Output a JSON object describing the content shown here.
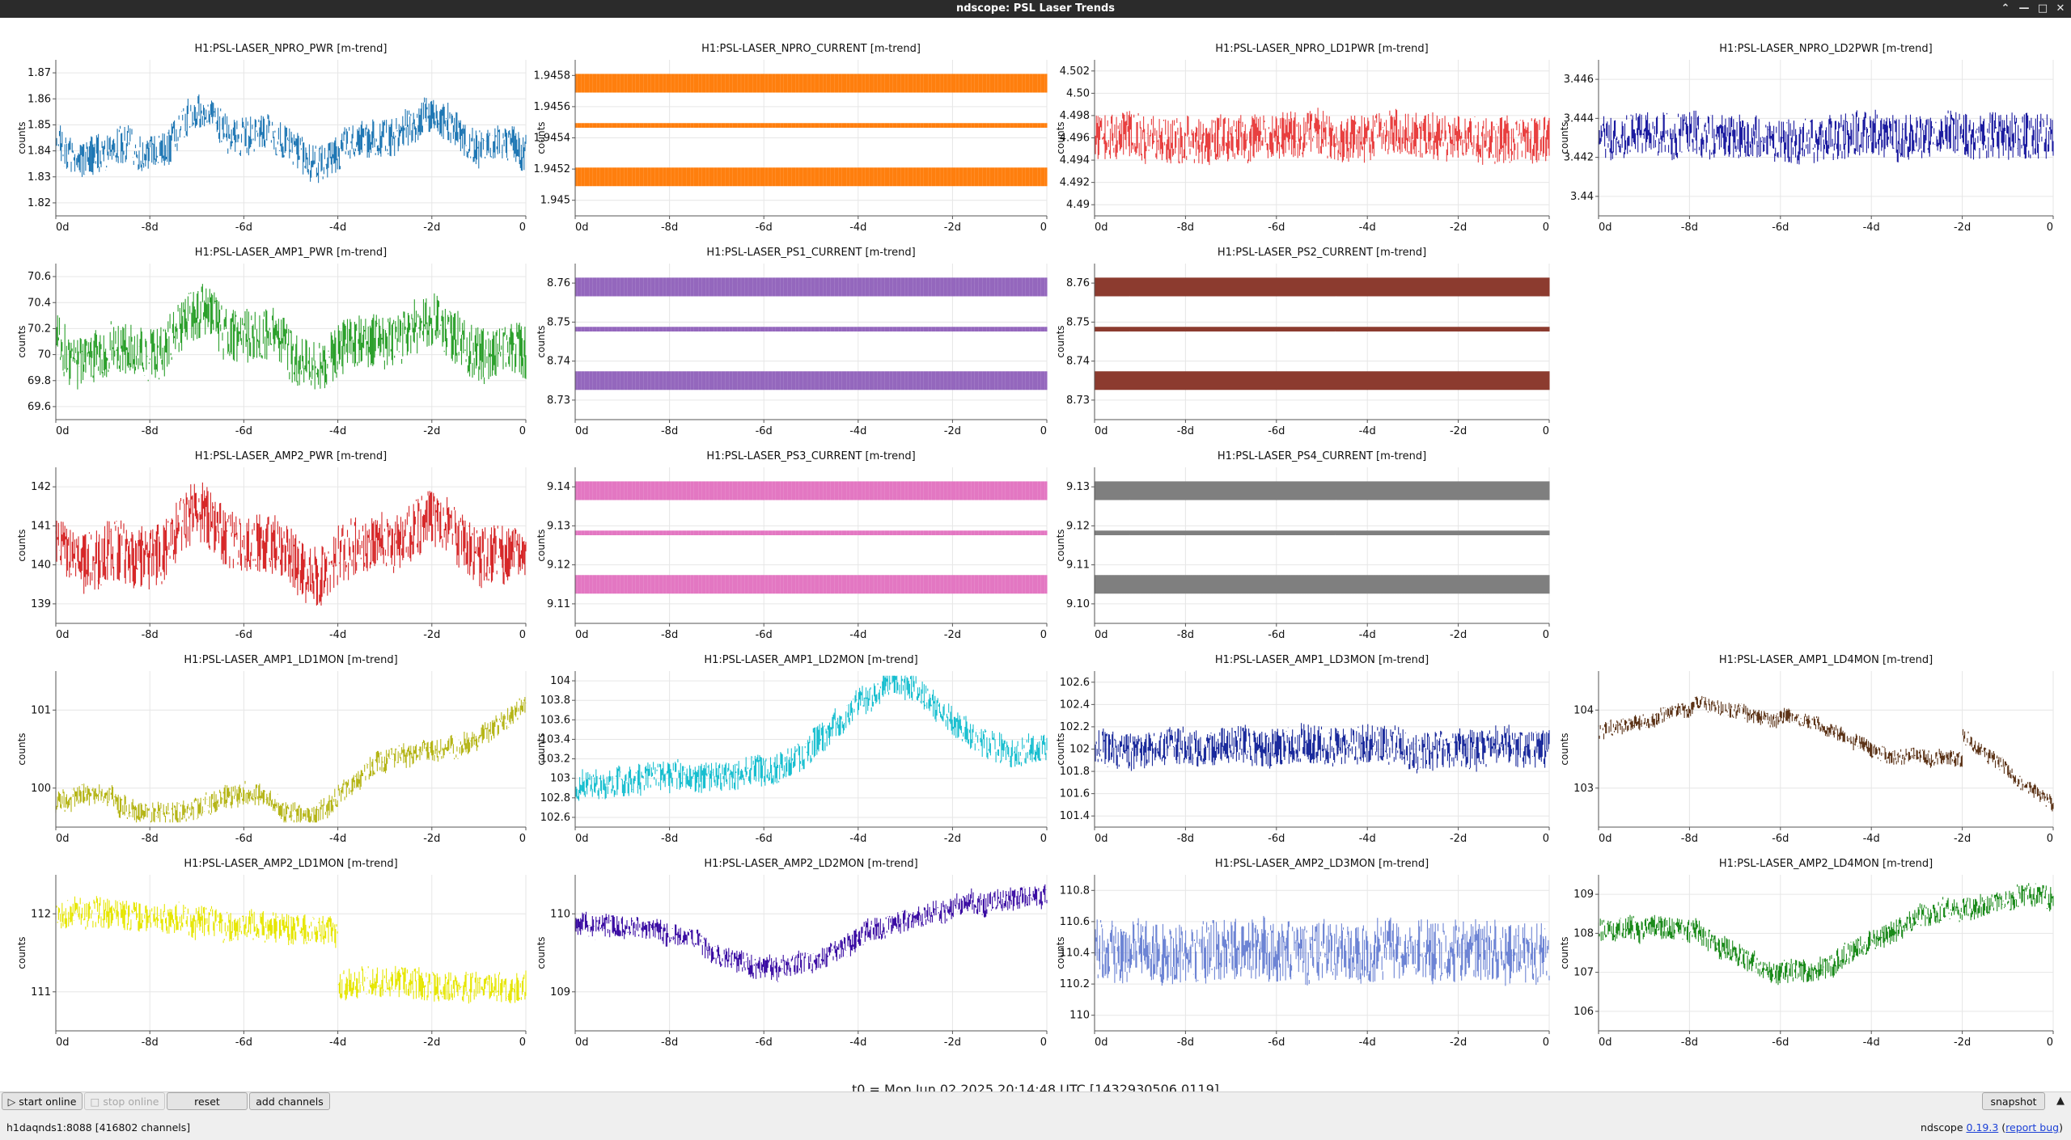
{
  "window": {
    "title": "ndscope: PSL Laser Trends"
  },
  "colors": {
    "titlebar_bg": "#2b2b2b",
    "grid": "#e6e6e6",
    "axis": "#555555"
  },
  "plots": [
    {
      "title": "H1:PSL-LASER_NPRO_PWR [m-trend]",
      "color": "#1f77b4",
      "yticks": [
        "1.87",
        "1.86",
        "1.85",
        "1.84",
        "1.83",
        "1.82"
      ],
      "pattern": "wave",
      "level": 0.45,
      "noise": 0.25
    },
    {
      "title": "H1:PSL-LASER_NPRO_CURRENT [m-trend]",
      "color": "#ff7f0e",
      "yticks": [
        "1.9458",
        "1.9456",
        "1.9454",
        "1.9452",
        "1.945"
      ],
      "pattern": "bands",
      "level": 0.5,
      "noise": 0.1
    },
    {
      "title": "H1:PSL-LASER_NPRO_LD1PWR [m-trend]",
      "color": "#e84040",
      "yticks": [
        "4.502",
        "4.50",
        "4.498",
        "4.496",
        "4.494",
        "4.492",
        "4.49"
      ],
      "pattern": "spiky",
      "level": 0.5,
      "noise": 0.3
    },
    {
      "title": "H1:PSL-LASER_NPRO_LD2PWR [m-trend]",
      "color": "#1c1ca0",
      "yticks": [
        "3.446",
        "3.444",
        "3.442",
        "3.44"
      ],
      "pattern": "spiky",
      "level": 0.5,
      "noise": 0.3
    },
    {
      "title": "H1:PSL-LASER_AMP1_PWR [m-trend]",
      "color": "#2ca02c",
      "yticks": [
        "70.6",
        "70.4",
        "70.2",
        "70",
        "69.8",
        "69.6"
      ],
      "pattern": "wave",
      "level": 0.5,
      "noise": 0.35
    },
    {
      "title": "H1:PSL-LASER_PS1_CURRENT [m-trend]",
      "color": "#9467bd",
      "yticks": [
        "8.76",
        "8.75",
        "8.74",
        "8.73"
      ],
      "pattern": "bands",
      "level": 0.5,
      "noise": 0.1
    },
    {
      "title": "H1:PSL-LASER_PS2_CURRENT [m-trend]",
      "color": "#8c3b2f",
      "yticks": [
        "8.76",
        "8.75",
        "8.74",
        "8.73"
      ],
      "pattern": "bands",
      "level": 0.5,
      "noise": 0.1
    },
    null,
    {
      "title": "H1:PSL-LASER_AMP2_PWR [m-trend]",
      "color": "#d62728",
      "yticks": [
        "142",
        "141",
        "140",
        "139"
      ],
      "pattern": "wave",
      "level": 0.5,
      "noise": 0.4
    },
    {
      "title": "H1:PSL-LASER_PS3_CURRENT [m-trend]",
      "color": "#e377c2",
      "yticks": [
        "9.14",
        "9.13",
        "9.12",
        "9.11"
      ],
      "pattern": "bands",
      "level": 0.5,
      "noise": 0.1
    },
    {
      "title": "H1:PSL-LASER_PS4_CURRENT [m-trend]",
      "color": "#7f7f7f",
      "yticks": [
        "9.13",
        "9.12",
        "9.11",
        "9.10"
      ],
      "pattern": "bands",
      "level": 0.5,
      "noise": 0.1
    },
    null,
    {
      "title": "H1:PSL-LASER_AMP1_LD1MON [m-trend]",
      "color": "#b5b517",
      "yticks": [
        "101",
        "100"
      ],
      "pattern": "rise",
      "level": 0.5,
      "noise": 0.15
    },
    {
      "title": "H1:PSL-LASER_AMP1_LD2MON [m-trend]",
      "color": "#17becf",
      "yticks": [
        "104",
        "103.8",
        "103.6",
        "103.4",
        "103.2",
        "103",
        "102.8",
        "102.6"
      ],
      "pattern": "hump",
      "level": 0.5,
      "noise": 0.2
    },
    {
      "title": "H1:PSL-LASER_AMP1_LD3MON [m-trend]",
      "color": "#1a2a9c",
      "yticks": [
        "102.6",
        "102.4",
        "102.2",
        "102",
        "101.8",
        "101.6",
        "101.4"
      ],
      "pattern": "spiky",
      "level": 0.45,
      "noise": 0.25
    },
    {
      "title": "H1:PSL-LASER_AMP1_LD4MON [m-trend]",
      "color": "#5c3317",
      "yticks": [
        "104",
        "103"
      ],
      "pattern": "humpfall",
      "level": 0.5,
      "noise": 0.1
    },
    {
      "title": "H1:PSL-LASER_AMP2_LD1MON [m-trend]",
      "color": "#e6e600",
      "yticks": [
        "112",
        "111"
      ],
      "pattern": "fall",
      "level": 0.5,
      "noise": 0.2
    },
    {
      "title": "H1:PSL-LASER_AMP2_LD2MON [m-trend]",
      "color": "#3a0ca3",
      "yticks": [
        "110",
        "109"
      ],
      "pattern": "dip",
      "level": 0.5,
      "noise": 0.15
    },
    {
      "title": "H1:PSL-LASER_AMP2_LD3MON [m-trend]",
      "color": "#6d84d4",
      "yticks": [
        "110.8",
        "110.6",
        "110.4",
        "110.2",
        "110"
      ],
      "pattern": "spiky",
      "level": 0.5,
      "noise": 0.4
    },
    {
      "title": "H1:PSL-LASER_AMP2_LD4MON [m-trend]",
      "color": "#1a8a1a",
      "yticks": [
        "109",
        "108",
        "107",
        "106"
      ],
      "pattern": "dip",
      "level": 0.5,
      "noise": 0.15
    }
  ],
  "xticks": [
    "0d",
    "-8d",
    "-6d",
    "-4d",
    "-2d",
    "0"
  ],
  "ylabel": "counts",
  "t0_label": "t0 = Mon Jun 02 2025 20:14:48 UTC [1432930506.0119]",
  "buttons": {
    "start_online": "start online",
    "stop_online": "stop online",
    "reset": "reset",
    "add_channels": "add channels",
    "snapshot": "snapshot"
  },
  "status": {
    "server": "h1daqnds1:8088  [416802 channels]",
    "app": "ndscope",
    "version": "0.19.3",
    "report": "report bug"
  }
}
